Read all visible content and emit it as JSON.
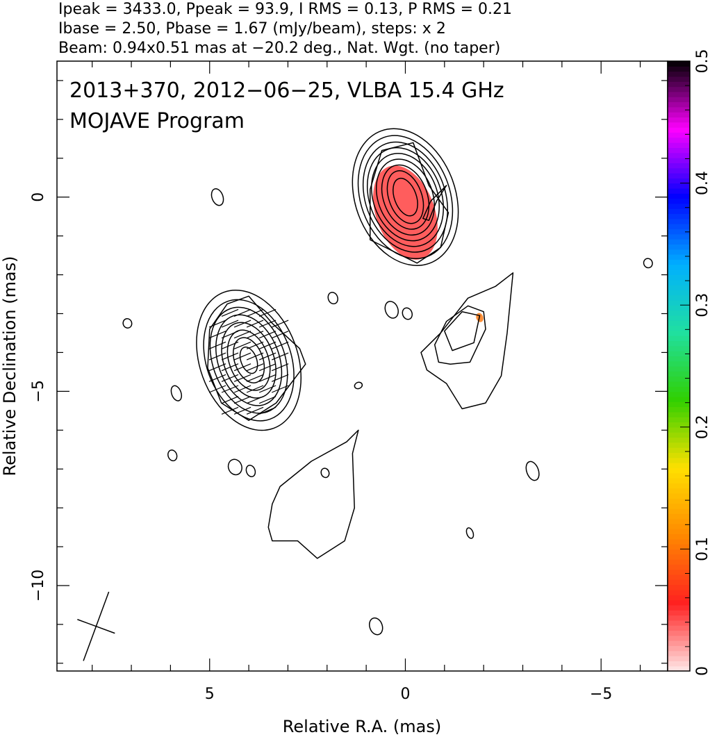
{
  "header": {
    "line1": "Ipeak = 3433.0, Ppeak = 93.9, I RMS = 0.13, P RMS = 0.21",
    "line2": "Ibase = 2.50, Pbase = 1.67 (mJy/beam), steps: x 2",
    "line3": "Beam: 0.94x0.51 mas at −20.2 deg., Nat. Wgt. (no taper)"
  },
  "plot_title": {
    "line1": "2013+370, 2012−06−25, VLBA 15.4 GHz",
    "line2": "MOJAVE Program"
  },
  "chart_data": {
    "type": "contour",
    "xlabel": "Relative R.A. (mas)",
    "ylabel": "Relative Declination (mas)",
    "xlim": [
      8.9,
      -6.7
    ],
    "ylim": [
      -12.2,
      3.5
    ],
    "x_ticks": [
      {
        "v": 5,
        "label": "5"
      },
      {
        "v": 0,
        "label": "0"
      },
      {
        "v": -5,
        "label": "−5"
      }
    ],
    "y_ticks": [
      {
        "v": 0,
        "label": "0"
      },
      {
        "v": -5,
        "label": "−5"
      },
      {
        "v": -10,
        "label": "−10"
      }
    ],
    "x_minor_step": 1,
    "y_minor_step": 1,
    "colorbar": {
      "label_ticks": [
        {
          "v": 0,
          "label": "0"
        },
        {
          "v": 0.1,
          "label": "0.1"
        },
        {
          "v": 0.2,
          "label": "0.2"
        },
        {
          "v": 0.3,
          "label": "0.3"
        },
        {
          "v": 0.4,
          "label": "0.4"
        },
        {
          "v": 0.5,
          "label": "0.5"
        }
      ],
      "range": [
        0,
        0.5
      ],
      "colors": [
        "#ffe8e8",
        "#ff2020",
        "#ff8800",
        "#ffe000",
        "#30d000",
        "#20e0a0",
        "#00b0ff",
        "#0000ff",
        "#ff00ff",
        "#000000"
      ]
    },
    "components": [
      {
        "name": "core",
        "x": 0,
        "y": 0,
        "rx": [
          0.28,
          0.42,
          0.56,
          0.7,
          0.82,
          0.92,
          1.02,
          1.14,
          1.28
        ],
        "ry": [
          0.5,
          0.7,
          0.85,
          1.0,
          1.15,
          1.3,
          1.45,
          1.62,
          1.8
        ],
        "angle": -20
      },
      {
        "name": "knot",
        "x": 4.0,
        "y": -4.2,
        "rx": [
          0.2,
          0.36,
          0.5,
          0.64,
          0.78,
          0.92,
          1.08,
          1.25
        ],
        "ry": [
          0.35,
          0.6,
          0.8,
          1.0,
          1.2,
          1.4,
          1.6,
          1.85
        ],
        "angle": -20
      }
    ],
    "polarization_patches": [
      {
        "x": 0.0,
        "y": -0.4,
        "rx": 0.75,
        "ry": 1.25,
        "value": 0.05
      },
      {
        "x": -1.9,
        "y": -3.1,
        "rx": 0.09,
        "ry": 0.12,
        "value": 0.1
      }
    ],
    "blobs": [
      {
        "x": 4.8,
        "y": 0.0,
        "rx": 0.14,
        "ry": 0.22
      },
      {
        "x": 1.85,
        "y": -2.6,
        "rx": 0.12,
        "ry": 0.15
      },
      {
        "x": 0.35,
        "y": -2.9,
        "rx": 0.16,
        "ry": 0.22
      },
      {
        "x": -0.05,
        "y": -3.0,
        "rx": 0.12,
        "ry": 0.15
      },
      {
        "x": 7.1,
        "y": -3.25,
        "rx": 0.11,
        "ry": 0.12
      },
      {
        "x": 5.85,
        "y": -5.05,
        "rx": 0.12,
        "ry": 0.2
      },
      {
        "x": 1.2,
        "y": -4.85,
        "rx": 0.1,
        "ry": 0.08
      },
      {
        "x": 5.95,
        "y": -6.65,
        "rx": 0.11,
        "ry": 0.14
      },
      {
        "x": 4.35,
        "y": -6.95,
        "rx": 0.17,
        "ry": 0.2
      },
      {
        "x": 3.95,
        "y": -7.05,
        "rx": 0.11,
        "ry": 0.15
      },
      {
        "x": 2.05,
        "y": -7.1,
        "rx": 0.1,
        "ry": 0.12
      },
      {
        "x": -3.25,
        "y": -7.05,
        "rx": 0.15,
        "ry": 0.25
      },
      {
        "x": -1.65,
        "y": -8.65,
        "rx": 0.08,
        "ry": 0.14
      },
      {
        "x": 0.75,
        "y": -11.05,
        "rx": 0.16,
        "ry": 0.22
      },
      {
        "x": -6.2,
        "y": -1.7,
        "rx": 0.11,
        "ry": 0.12
      }
    ],
    "beam": {
      "x": 7.9,
      "y": -11.05,
      "major": 0.94,
      "minor": 0.51,
      "angle": -20.2
    }
  }
}
